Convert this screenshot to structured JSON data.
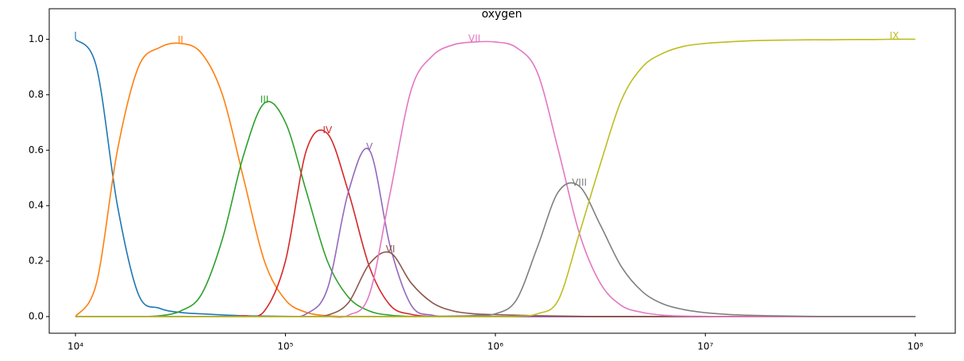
{
  "chart_data": {
    "type": "line",
    "title": "oxygen",
    "log_x": true,
    "x": [
      10000,
      12589,
      15849,
      19953,
      25119,
      31623,
      39811,
      50119,
      63096,
      79433,
      100000,
      125893,
      158489,
      199526,
      251189,
      316228,
      398107,
      501187,
      630957,
      794328,
      1000000,
      1258925,
      1584893,
      1995262,
      2511886,
      3162278,
      3981072,
      5011872,
      6309573,
      7943282,
      10000000,
      12589254,
      15848932,
      19952623,
      25118864,
      31622777,
      39810717,
      50118723,
      63095734,
      79432823,
      100000000
    ],
    "series": [
      {
        "name": "I",
        "color": "#1f77b4",
        "values": [
          1.0,
          0.9,
          0.4,
          0.08,
          0.03,
          0.015,
          0.01,
          0.006,
          0.003,
          0.002,
          0.001,
          0,
          0,
          0,
          0,
          0,
          0,
          0,
          0,
          0,
          0,
          0,
          0,
          0,
          0,
          0,
          0,
          0,
          0,
          0,
          0,
          0,
          0,
          0,
          0,
          0,
          0,
          0,
          0,
          0,
          0
        ]
      },
      {
        "name": "II",
        "color": "#ff7f0e",
        "values": [
          0,
          0.12,
          0.6,
          0.9,
          0.97,
          0.985,
          0.95,
          0.8,
          0.5,
          0.2,
          0.06,
          0.015,
          0.003,
          0,
          0,
          0,
          0,
          0,
          0,
          0,
          0,
          0,
          0,
          0,
          0,
          0,
          0,
          0,
          0,
          0,
          0,
          0,
          0,
          0,
          0,
          0,
          0,
          0,
          0,
          0,
          0
        ]
      },
      {
        "name": "III",
        "color": "#2ca02c",
        "values": [
          0,
          0,
          0,
          0,
          0.003,
          0.02,
          0.08,
          0.28,
          0.58,
          0.77,
          0.7,
          0.45,
          0.2,
          0.07,
          0.02,
          0.005,
          0.001,
          0,
          0,
          0,
          0,
          0,
          0,
          0,
          0,
          0,
          0,
          0,
          0,
          0,
          0,
          0,
          0,
          0,
          0,
          0,
          0,
          0,
          0,
          0,
          0
        ]
      },
      {
        "name": "IV",
        "color": "#d62728",
        "values": [
          0,
          0,
          0,
          0,
          0,
          0,
          0,
          0,
          0.003,
          0.02,
          0.2,
          0.6,
          0.66,
          0.45,
          0.18,
          0.04,
          0.008,
          0.001,
          0,
          0,
          0,
          0,
          0,
          0,
          0,
          0,
          0,
          0,
          0,
          0,
          0,
          0,
          0,
          0,
          0,
          0,
          0,
          0,
          0,
          0,
          0
        ]
      },
      {
        "name": "V",
        "color": "#9467bd",
        "values": [
          0,
          0,
          0,
          0,
          0,
          0,
          0,
          0,
          0,
          0,
          0,
          0.01,
          0.1,
          0.45,
          0.6,
          0.25,
          0.04,
          0.005,
          0,
          0,
          0,
          0,
          0,
          0,
          0,
          0,
          0,
          0,
          0,
          0,
          0,
          0,
          0,
          0,
          0,
          0,
          0,
          0,
          0,
          0,
          0
        ]
      },
      {
        "name": "VI",
        "color": "#8c564b",
        "values": [
          0,
          0,
          0,
          0,
          0,
          0,
          0,
          0,
          0,
          0,
          0,
          0,
          0.005,
          0.05,
          0.19,
          0.23,
          0.12,
          0.05,
          0.02,
          0.01,
          0.007,
          0.005,
          0.003,
          0.002,
          0.001,
          0,
          0,
          0,
          0,
          0,
          0,
          0,
          0,
          0,
          0,
          0,
          0,
          0,
          0,
          0,
          0
        ]
      },
      {
        "name": "VII",
        "color": "#e377c2",
        "values": [
          0,
          0,
          0,
          0,
          0,
          0,
          0,
          0,
          0,
          0,
          0,
          0,
          0,
          0.005,
          0.08,
          0.45,
          0.82,
          0.94,
          0.98,
          0.99,
          0.99,
          0.97,
          0.88,
          0.6,
          0.3,
          0.12,
          0.04,
          0.015,
          0.005,
          0.002,
          0.001,
          0,
          0,
          0,
          0,
          0,
          0,
          0,
          0,
          0,
          0
        ]
      },
      {
        "name": "VIII",
        "color": "#7f7f7f",
        "values": [
          0,
          0,
          0,
          0,
          0,
          0,
          0,
          0,
          0,
          0,
          0,
          0,
          0,
          0,
          0,
          0,
          0,
          0.001,
          0.002,
          0.004,
          0.01,
          0.06,
          0.25,
          0.45,
          0.47,
          0.33,
          0.18,
          0.09,
          0.045,
          0.025,
          0.014,
          0.008,
          0.005,
          0.003,
          0.002,
          0.001,
          0,
          0,
          0,
          0,
          0
        ]
      },
      {
        "name": "IX",
        "color": "#bcbd22",
        "values": [
          0,
          0,
          0,
          0,
          0,
          0,
          0,
          0,
          0,
          0,
          0,
          0,
          0,
          0,
          0,
          0,
          0,
          0,
          0,
          0,
          0,
          0.001,
          0.01,
          0.06,
          0.3,
          0.55,
          0.78,
          0.9,
          0.95,
          0.975,
          0.985,
          0.99,
          0.994,
          0.996,
          0.997,
          0.998,
          0.998,
          0.999,
          0.999,
          1.0,
          1.0
        ]
      }
    ],
    "xlim": [
      7500,
      155000000
    ],
    "xticks": [
      {
        "value": 10000,
        "label": "10⁴"
      },
      {
        "value": 100000,
        "label": "10⁵"
      },
      {
        "value": 1000000,
        "label": "10⁶"
      },
      {
        "value": 10000000,
        "label": "10⁷"
      },
      {
        "value": 100000000,
        "label": "10⁸"
      }
    ],
    "ylim": [
      -0.06,
      1.11
    ],
    "yticks": [
      {
        "value": 0,
        "label": "0.0"
      },
      {
        "value": 0.2,
        "label": "0.2"
      },
      {
        "value": 0.4,
        "label": "0.4"
      },
      {
        "value": 0.6,
        "label": "0.6"
      },
      {
        "value": 0.8,
        "label": "0.8"
      },
      {
        "value": 1.0,
        "label": "1.0"
      }
    ]
  }
}
